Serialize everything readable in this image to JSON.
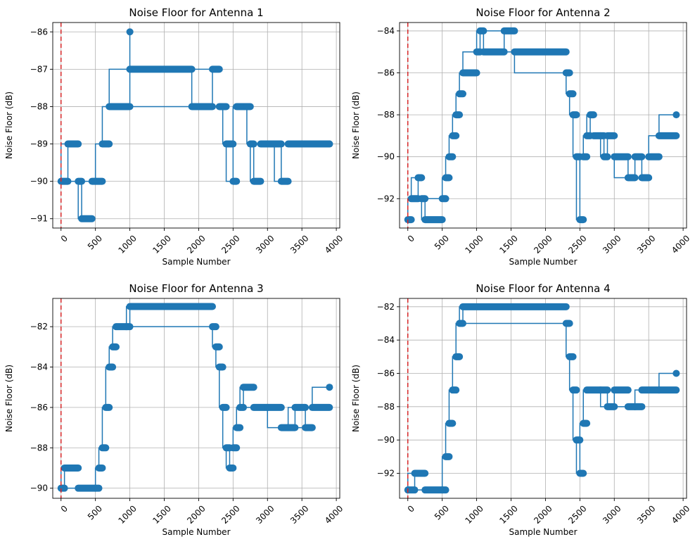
{
  "colors": {
    "series": "#1f77b4",
    "marker_line": "#d62728",
    "grid": "#b0b0b0"
  },
  "chart_data": [
    {
      "type": "line",
      "title": "Noise Floor for Antenna 1",
      "xlabel": "Sample Number",
      "ylabel": "Noise Floor (dB)",
      "xlim": [
        -120,
        4050
      ],
      "ylim": [
        -91.25,
        -85.75
      ],
      "xticks": [
        0,
        500,
        1000,
        1500,
        2000,
        2500,
        3000,
        3500,
        4000
      ],
      "yticks": [
        -91,
        -90,
        -89,
        -88,
        -87,
        -86
      ],
      "grid": true,
      "vline_x": 0,
      "series": [
        {
          "x": [
            0,
            100,
            250,
            300,
            450,
            500,
            600,
            700,
            1000,
            1000,
            1000,
            1900,
            2200,
            2300,
            2350,
            2400,
            2500,
            2550,
            2700,
            2750,
            2800,
            2900,
            3100,
            3200,
            3300,
            3900
          ],
          "y": [
            -90,
            -89,
            -90,
            -91,
            -90,
            -90,
            -89,
            -88,
            -87,
            -86,
            -87,
            -88,
            -87,
            -88,
            -88,
            -89,
            -90,
            -88,
            -88,
            -89,
            -90,
            -89,
            -89,
            -90,
            -89,
            -89
          ]
        }
      ]
    },
    {
      "type": "line",
      "title": "Noise Floor for Antenna 2",
      "xlabel": "Sample Number",
      "ylabel": "Noise Floor (dB)",
      "xlim": [
        -120,
        4050
      ],
      "ylim": [
        -93.4,
        -83.6
      ],
      "xticks": [
        0,
        500,
        1000,
        1500,
        2000,
        2500,
        3000,
        3500,
        4000
      ],
      "yticks": [
        -92,
        -90,
        -88,
        -86,
        -84
      ],
      "grid": true,
      "vline_x": 0,
      "series": [
        {
          "x": [
            0,
            50,
            150,
            200,
            250,
            500,
            550,
            600,
            650,
            700,
            750,
            800,
            1000,
            1050,
            1100,
            1400,
            1550,
            2300,
            2350,
            2400,
            2450,
            2500,
            2550,
            2600,
            2650,
            2700,
            2800,
            2850,
            2900,
            3000,
            3200,
            3300,
            3400,
            3500,
            3650,
            3900
          ],
          "y": [
            -93,
            -92,
            -91,
            -92,
            -93,
            -92,
            -91,
            -90,
            -89,
            -88,
            -87,
            -86,
            -85,
            -84,
            -85,
            -84,
            -85,
            -86,
            -87,
            -88,
            -90,
            -93,
            -90,
            -89,
            -88,
            -89,
            -89,
            -90,
            -89,
            -90,
            -91,
            -90,
            -91,
            -90,
            -89,
            -88
          ]
        }
      ]
    },
    {
      "type": "line",
      "title": "Noise Floor for Antenna 3",
      "xlabel": "Sample Number",
      "ylabel": "Noise Floor (dB)",
      "xlim": [
        -120,
        4050
      ],
      "ylim": [
        -90.5,
        -80.6
      ],
      "xticks": [
        0,
        500,
        1000,
        1500,
        2000,
        2500,
        3000,
        3500,
        4000
      ],
      "yticks": [
        -90,
        -88,
        -86,
        -84,
        -82
      ],
      "grid": true,
      "vline_x": 0,
      "series": [
        {
          "x": [
            0,
            50,
            250,
            500,
            550,
            600,
            650,
            700,
            750,
            800,
            950,
            1000,
            2200,
            2250,
            2300,
            2350,
            2400,
            2450,
            2500,
            2550,
            2600,
            2650,
            2800,
            3000,
            3200,
            3300,
            3400,
            3550,
            3650,
            3900
          ],
          "y": [
            -90,
            -89,
            -90,
            -90,
            -89,
            -88,
            -86,
            -84,
            -83,
            -82,
            -82,
            -81,
            -82,
            -83,
            -84,
            -86,
            -88,
            -89,
            -88,
            -87,
            -86,
            -85,
            -86,
            -86,
            -87,
            -87,
            -86,
            -87,
            -86,
            -85
          ]
        }
      ]
    },
    {
      "type": "line",
      "title": "Noise Floor for Antenna 4",
      "xlabel": "Sample Number",
      "ylabel": "Noise Floor (dB)",
      "xlim": [
        -120,
        4050
      ],
      "ylim": [
        -93.5,
        -81.5
      ],
      "xticks": [
        0,
        500,
        1000,
        1500,
        2000,
        2500,
        3000,
        3500,
        4000
      ],
      "yticks": [
        -92,
        -90,
        -88,
        -86,
        -84,
        -82
      ],
      "grid": true,
      "vline_x": 0,
      "series": [
        {
          "x": [
            0,
            100,
            250,
            500,
            550,
            600,
            650,
            700,
            750,
            800,
            2300,
            2350,
            2400,
            2450,
            2500,
            2550,
            2600,
            2800,
            2900,
            3000,
            3200,
            3300,
            3400,
            3650,
            3900
          ],
          "y": [
            -93,
            -92,
            -93,
            -93,
            -91,
            -89,
            -87,
            -85,
            -83,
            -82,
            -83,
            -85,
            -87,
            -90,
            -92,
            -89,
            -87,
            -87,
            -88,
            -87,
            -88,
            -88,
            -87,
            -87,
            -86
          ]
        }
      ]
    }
  ]
}
